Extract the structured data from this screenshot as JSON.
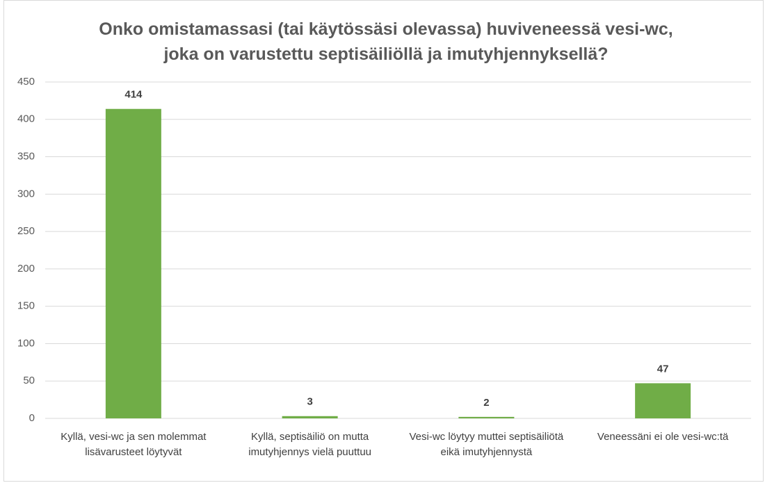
{
  "chart_data": {
    "type": "bar",
    "title": "Onko omistamassasi (tai käytössäsi olevassa) huviveneessä vesi-wc, joka on varustettu septisäiliöllä ja imutyhjennyksellä?",
    "categories": [
      "Kyllä, vesi-wc ja sen molemmat lisävarusteet löytyvät",
      "Kyllä, septisäiliö on mutta imutyhjennys vielä puuttuu",
      "Vesi-wc löytyy muttei septisäiliötä eikä imutyhjennystä",
      "Veneessäni ei ole vesi-wc:tä"
    ],
    "values": [
      414,
      3,
      2,
      47
    ],
    "color": "#70ad47",
    "ylim": [
      0,
      450
    ],
    "yticks": [
      0,
      50,
      100,
      150,
      200,
      250,
      300,
      350,
      400,
      450
    ],
    "grid": true
  }
}
